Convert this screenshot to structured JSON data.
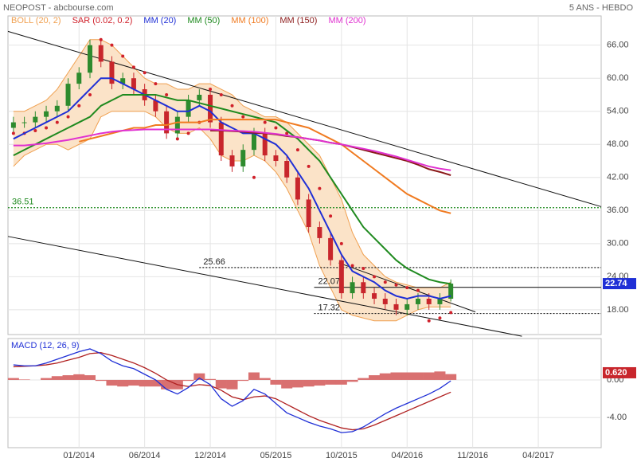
{
  "chart_data": {
    "type": "candlestick",
    "title": "NEOPOST - abcbourse.com",
    "subtitle": "5 ANS - HEBDO",
    "x": [
      -24,
      -20,
      -16,
      -12,
      -8,
      -4,
      0,
      4,
      8,
      12,
      16,
      20,
      24,
      28,
      32,
      36,
      40,
      44,
      48,
      52,
      56,
      60,
      64,
      68,
      72,
      76,
      80,
      84,
      88,
      92,
      96,
      100,
      104,
      108,
      112,
      116,
      120,
      124,
      128,
      132,
      136
    ],
    "open": [
      51,
      52,
      52,
      53,
      54,
      55,
      59,
      61,
      66,
      63,
      59,
      60,
      58,
      56,
      54,
      50,
      53,
      56,
      57,
      52,
      46,
      44,
      47,
      50,
      46,
      45,
      42,
      38,
      33,
      31,
      27,
      21,
      23,
      21,
      20,
      19,
      18,
      19,
      20,
      19,
      20
    ],
    "high": [
      53,
      53,
      54,
      55,
      56,
      60,
      62,
      67,
      67,
      64,
      61,
      61,
      59,
      57,
      55,
      54,
      57,
      58,
      58,
      53,
      47,
      48,
      51,
      51,
      47,
      46,
      43,
      39,
      34,
      32,
      28,
      24,
      24,
      22,
      21,
      20,
      20,
      21,
      21,
      21,
      23.5
    ],
    "low": [
      50,
      51,
      51,
      52,
      53,
      54,
      58,
      60,
      62,
      58,
      58,
      57,
      55,
      53,
      49,
      49,
      52,
      55,
      51,
      45,
      43,
      43,
      46,
      45,
      44,
      41,
      37,
      32,
      30,
      26,
      20,
      20,
      20,
      19,
      18,
      17,
      17,
      18,
      18,
      18,
      19.5
    ],
    "close": [
      52,
      52,
      53,
      54,
      55,
      59,
      61,
      66,
      63,
      59,
      60,
      58,
      56,
      54,
      50,
      53,
      56,
      57,
      52,
      46,
      44,
      47,
      50,
      46,
      45,
      42,
      38,
      33,
      31,
      27,
      21,
      23,
      21,
      20,
      19,
      18,
      19,
      20,
      19,
      20,
      22.74
    ],
    "up_color": "#2e8b2e",
    "down_color": "#c8262c",
    "bollinger": {
      "name": "BOLL (20, 2)",
      "color": "#f0a050",
      "fill": "#fbe3c8",
      "upper": [
        54,
        54,
        55,
        56,
        58,
        61,
        64,
        67,
        67,
        66,
        64,
        62,
        60,
        59,
        59,
        58,
        58,
        59,
        59,
        58,
        57,
        55,
        54,
        53,
        53,
        52,
        50,
        48,
        46,
        42,
        38,
        32,
        28,
        26,
        24,
        23,
        22.5,
        22,
        22,
        22,
        23
      ],
      "lower": [
        44,
        46,
        47,
        48,
        48,
        47,
        48,
        49,
        53,
        54,
        54,
        54,
        54,
        53,
        51,
        50,
        50,
        51,
        49,
        46,
        45,
        45,
        46,
        45,
        43,
        40,
        36,
        32,
        26,
        22,
        18,
        17,
        16.5,
        16,
        16,
        16,
        17,
        18,
        18.5,
        18.5,
        18.5
      ]
    },
    "series": [
      {
        "name": "SAR (0.02, 0.2)",
        "color": "#d0202a",
        "style": "dots",
        "values": [
          50,
          50,
          50.5,
          51,
          52,
          53,
          55,
          57,
          67,
          66,
          64,
          62,
          61,
          59,
          57,
          49,
          50,
          52,
          58,
          57,
          55,
          53,
          42,
          52,
          51,
          50,
          47,
          44,
          40,
          35,
          30,
          26,
          25.5,
          24,
          23,
          22.5,
          22,
          21.5,
          16,
          16.5,
          17.5
        ]
      },
      {
        "name": "MM (20)",
        "color": "#1f2fd6",
        "style": "line",
        "values": [
          49,
          50,
          51,
          52,
          53,
          54,
          56,
          58,
          60,
          60,
          59,
          58,
          57,
          56,
          55,
          54,
          54,
          55,
          54,
          52,
          51,
          50,
          50,
          49,
          48,
          46,
          43,
          40,
          36,
          32,
          28,
          25,
          24,
          23,
          21.5,
          20.5,
          20,
          20.5,
          20.5,
          20,
          20.5
        ]
      },
      {
        "name": "MM (50)",
        "color": "#1f8a1f",
        "style": "line",
        "values": [
          46,
          47,
          48,
          49,
          50,
          51,
          52,
          53,
          55,
          56,
          57,
          57,
          57,
          57,
          56.5,
          56,
          56,
          55.5,
          55,
          54.5,
          54,
          53.5,
          53,
          52.5,
          52,
          50.5,
          49,
          47,
          45,
          42,
          39,
          36,
          33,
          31,
          29,
          27,
          25.5,
          24.5,
          23.5,
          23,
          22.7
        ]
      },
      {
        "name": "MM (100)",
        "color": "#f07a20",
        "style": "line",
        "values": [
          null,
          null,
          null,
          null,
          null,
          null,
          48.5,
          49,
          49.5,
          50,
          50.5,
          51,
          51,
          51.5,
          51.5,
          52,
          52,
          52,
          52.5,
          52.5,
          52.5,
          52.5,
          52.5,
          52.5,
          52.5,
          52,
          51.5,
          51,
          50,
          49,
          48,
          46.5,
          45,
          43.5,
          42,
          40.5,
          39,
          38,
          37,
          36,
          35.5
        ]
      },
      {
        "name": "MM (150)",
        "color": "#8b1a1a",
        "style": "line",
        "values": [
          null,
          null,
          null,
          null,
          null,
          null,
          null,
          null,
          null,
          null,
          null,
          null,
          null,
          null,
          null,
          null,
          null,
          null,
          50.5,
          50.5,
          50.4,
          50.3,
          50.1,
          50,
          49.8,
          49.5,
          49.3,
          49,
          48.7,
          48.3,
          48,
          47.5,
          47,
          46.5,
          46,
          45.5,
          45,
          44.3,
          43.5,
          43,
          42.4
        ]
      },
      {
        "name": "MM (200)",
        "color": "#e030d0",
        "style": "line",
        "values": [
          47.8,
          47.8,
          48,
          48.2,
          48.5,
          48.8,
          49.2,
          49.6,
          50,
          50.3,
          50.5,
          50.6,
          50.7,
          50.7,
          50.7,
          50.7,
          50.7,
          50.7,
          50.7,
          50.6,
          50.5,
          50.4,
          50.3,
          50.1,
          49.9,
          49.6,
          49.3,
          49,
          48.7,
          48.3,
          48,
          47.6,
          47.2,
          46.8,
          46.3,
          45.8,
          45.2,
          44.6,
          44,
          43.6,
          43.3
        ]
      }
    ],
    "levels": [
      {
        "value": 36.51,
        "from": -26,
        "color": "#1f8a1f"
      },
      {
        "value": 25.66,
        "from": 44,
        "color": "#222"
      },
      {
        "value": 22.07,
        "from": 86,
        "color": "#222"
      },
      {
        "value": 17.32,
        "from": 86,
        "color": "#222"
      }
    ],
    "trendlines": [
      {
        "x": [
          -26,
          191
        ],
        "y": [
          68.5,
          36.7
        ]
      },
      {
        "x": [
          -26,
          162
        ],
        "y": [
          31.3,
          13.2
        ]
      },
      {
        "x": [
          95,
          145
        ],
        "y": [
          26.5,
          17.6
        ]
      }
    ],
    "xlim": [
      -26,
      191
    ],
    "ylim": [
      13.5,
      71.3
    ],
    "xticks": [
      {
        "value": 0,
        "label": "01/2014"
      },
      {
        "value": 24,
        "label": "06/2014"
      },
      {
        "value": 48,
        "label": "12/2014"
      },
      {
        "value": 72,
        "label": "05/2015"
      },
      {
        "value": 96,
        "label": "10/2015"
      },
      {
        "value": 120,
        "label": "04/2016"
      },
      {
        "value": 144,
        "label": "11/2016"
      },
      {
        "value": 168,
        "label": "04/2017"
      }
    ],
    "yticks": [
      {
        "value": 18,
        "label": "18.00"
      },
      {
        "value": 24,
        "label": "24.00"
      },
      {
        "value": 30,
        "label": "30.00"
      },
      {
        "value": 36,
        "label": "36.00"
      },
      {
        "value": 42,
        "label": "42.00"
      },
      {
        "value": 48,
        "label": "48.00"
      },
      {
        "value": 54,
        "label": "54.00"
      },
      {
        "value": 60,
        "label": "60.00"
      },
      {
        "value": 66,
        "label": "66.00"
      }
    ],
    "macd": {
      "name": "MACD (12, 26, 9)",
      "ylim": [
        -7.2,
        4.4
      ],
      "yticks": [
        {
          "value": 0,
          "label": "0.00"
        },
        {
          "value": -4,
          "label": "-4.00"
        }
      ],
      "macd_color": "#1f2fd6",
      "signal_color": "#b02020",
      "histogram_color": "#d97070",
      "macd": [
        1.6,
        1.5,
        1.5,
        1.8,
        2.2,
        2.6,
        3.0,
        3.3,
        2.8,
        2.0,
        1.5,
        1.2,
        0.6,
        0,
        -1.0,
        -1.5,
        -0.8,
        0.2,
        -0.5,
        -2.0,
        -2.8,
        -2.2,
        -1.0,
        -1.5,
        -2.5,
        -3.5,
        -4.0,
        -4.5,
        -4.9,
        -5.2,
        -5.6,
        -5.5,
        -5.0,
        -4.3,
        -3.6,
        -3.0,
        -2.5,
        -2.0,
        -1.5,
        -0.9,
        -0.1
      ],
      "signal": [
        1.4,
        1.45,
        1.5,
        1.6,
        1.8,
        2.1,
        2.4,
        2.8,
        2.9,
        2.6,
        2.2,
        1.8,
        1.3,
        0.7,
        0,
        -0.5,
        -0.7,
        -0.5,
        -0.6,
        -1.1,
        -1.8,
        -2.1,
        -1.8,
        -1.7,
        -2.0,
        -2.6,
        -3.2,
        -3.8,
        -4.3,
        -4.7,
        -5.1,
        -5.3,
        -5.2,
        -4.8,
        -4.3,
        -3.8,
        -3.3,
        -2.8,
        -2.3,
        -1.8,
        -1.3
      ],
      "histogram": [
        0.2,
        0.05,
        0,
        0.2,
        0.4,
        0.5,
        0.6,
        0.5,
        -0.1,
        -0.6,
        -0.7,
        -0.6,
        -0.7,
        -0.7,
        -1.0,
        -1.0,
        -0.1,
        0.7,
        0.1,
        -0.9,
        -1.0,
        -0.1,
        0.8,
        0.2,
        -0.5,
        -0.9,
        -0.8,
        -0.7,
        -0.6,
        -0.5,
        -0.5,
        -0.2,
        0.2,
        0.5,
        0.7,
        0.8,
        0.8,
        0.8,
        0.8,
        0.9,
        0.62
      ],
      "histogram_value_labels": [
        null,
        null,
        null,
        null,
        null,
        null,
        null,
        null,
        null,
        null,
        null,
        null,
        null,
        null,
        null,
        null,
        null,
        null,
        null,
        null,
        null,
        null,
        null,
        null,
        null,
        null,
        null,
        null,
        null,
        null,
        null,
        null,
        null,
        null,
        null,
        null,
        null,
        null,
        null,
        null,
        "0.620"
      ]
    }
  }
}
